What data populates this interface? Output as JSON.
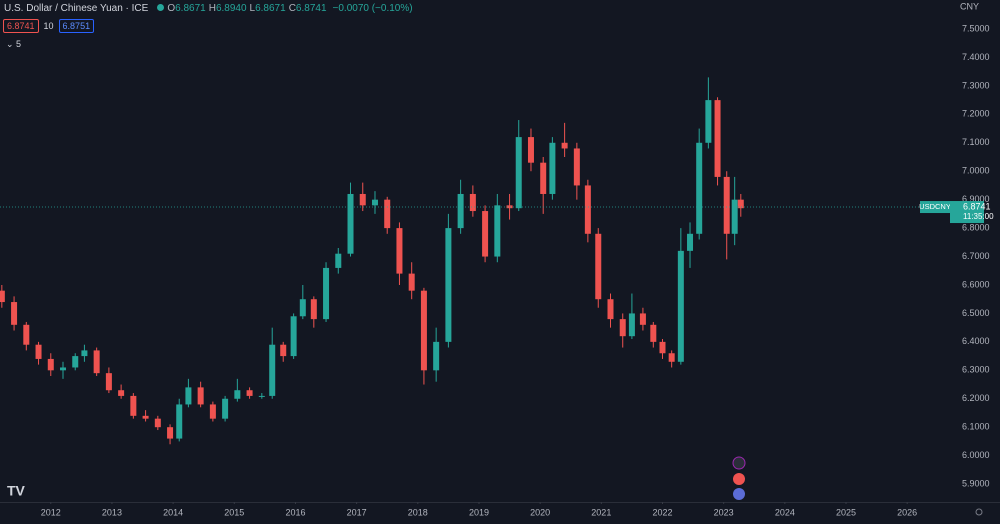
{
  "header": {
    "title": "U.S. Dollar / Chinese Yuan · ICE",
    "ohlc": [
      {
        "k": "O",
        "v": "6.8671"
      },
      {
        "k": "H",
        "v": "6.8940"
      },
      {
        "k": "L",
        "v": "6.8671"
      },
      {
        "k": "C",
        "v": "6.8741"
      }
    ],
    "change": "−0.0070 (−0.10%)",
    "sell": "6.8741",
    "spread": "10",
    "buy": "6.8751",
    "indicators": "5"
  },
  "chart_data": {
    "type": "candlestick",
    "x": [
      2011.2,
      2011.4,
      2011.6,
      2011.8,
      2012.0,
      2012.2,
      2012.4,
      2012.55,
      2012.75,
      2012.95,
      2013.15,
      2013.35,
      2013.55,
      2013.75,
      2013.95,
      2014.1,
      2014.25,
      2014.45,
      2014.65,
      2014.85,
      2015.05,
      2015.25,
      2015.45,
      2015.62,
      2015.8,
      2015.97,
      2016.12,
      2016.3,
      2016.5,
      2016.7,
      2016.9,
      2017.1,
      2017.3,
      2017.5,
      2017.7,
      2017.9,
      2018.1,
      2018.3,
      2018.5,
      2018.7,
      2018.9,
      2019.1,
      2019.3,
      2019.5,
      2019.65,
      2019.85,
      2020.05,
      2020.2,
      2020.4,
      2020.6,
      2020.78,
      2020.95,
      2021.15,
      2021.35,
      2021.5,
      2021.68,
      2021.85,
      2022.0,
      2022.15,
      2022.3,
      2022.45,
      2022.6,
      2022.75,
      2022.9,
      2023.05,
      2023.18,
      2023.28
    ],
    "open": [
      6.58,
      6.54,
      6.46,
      6.39,
      6.34,
      6.3,
      6.31,
      6.35,
      6.37,
      6.29,
      6.23,
      6.21,
      6.14,
      6.13,
      6.1,
      6.06,
      6.18,
      6.24,
      6.18,
      6.13,
      6.2,
      6.23,
      6.21,
      6.21,
      6.39,
      6.35,
      6.49,
      6.55,
      6.48,
      6.66,
      6.71,
      6.92,
      6.88,
      6.9,
      6.8,
      6.64,
      6.58,
      6.3,
      6.4,
      6.8,
      6.92,
      6.86,
      6.7,
      6.88,
      6.87,
      7.12,
      7.03,
      6.92,
      7.1,
      7.08,
      6.95,
      6.78,
      6.55,
      6.48,
      6.42,
      6.5,
      6.46,
      6.4,
      6.36,
      6.33,
      6.72,
      6.78,
      7.1,
      7.25,
      6.98,
      6.78,
      6.9
    ],
    "high": [
      6.6,
      6.56,
      6.47,
      6.4,
      6.36,
      6.33,
      6.36,
      6.39,
      6.38,
      6.31,
      6.25,
      6.22,
      6.16,
      6.14,
      6.11,
      6.2,
      6.27,
      6.26,
      6.19,
      6.21,
      6.27,
      6.24,
      6.22,
      6.45,
      6.4,
      6.5,
      6.6,
      6.56,
      6.68,
      6.73,
      6.96,
      6.96,
      6.93,
      6.91,
      6.82,
      6.68,
      6.59,
      6.45,
      6.85,
      6.97,
      6.95,
      6.88,
      6.92,
      6.92,
      7.18,
      7.15,
      7.05,
      7.12,
      7.17,
      7.1,
      6.97,
      6.8,
      6.57,
      6.5,
      6.57,
      6.52,
      6.47,
      6.41,
      6.37,
      6.8,
      6.82,
      7.15,
      7.33,
      7.26,
      7.0,
      6.98,
      6.92
    ],
    "low": [
      6.52,
      6.44,
      6.37,
      6.32,
      6.28,
      6.27,
      6.3,
      6.33,
      6.28,
      6.22,
      6.2,
      6.13,
      6.12,
      6.09,
      6.04,
      6.05,
      6.17,
      6.17,
      6.12,
      6.12,
      6.19,
      6.2,
      6.2,
      6.2,
      6.33,
      6.34,
      6.48,
      6.45,
      6.47,
      6.64,
      6.7,
      6.86,
      6.85,
      6.78,
      6.6,
      6.55,
      6.25,
      6.26,
      6.38,
      6.78,
      6.84,
      6.68,
      6.68,
      6.83,
      6.86,
      7.0,
      6.85,
      6.9,
      7.05,
      6.9,
      6.75,
      6.52,
      6.45,
      6.38,
      6.41,
      6.44,
      6.38,
      6.34,
      6.31,
      6.32,
      6.66,
      6.76,
      7.08,
      6.95,
      6.69,
      6.74,
      6.84
    ],
    "close": [
      6.54,
      6.46,
      6.39,
      6.34,
      6.3,
      6.31,
      6.35,
      6.37,
      6.29,
      6.23,
      6.21,
      6.14,
      6.13,
      6.1,
      6.06,
      6.18,
      6.24,
      6.18,
      6.13,
      6.2,
      6.23,
      6.21,
      6.21,
      6.39,
      6.35,
      6.49,
      6.55,
      6.48,
      6.66,
      6.71,
      6.92,
      6.88,
      6.9,
      6.8,
      6.64,
      6.58,
      6.3,
      6.4,
      6.8,
      6.92,
      6.86,
      6.7,
      6.88,
      6.87,
      7.12,
      7.03,
      6.92,
      7.1,
      7.08,
      6.95,
      6.78,
      6.55,
      6.48,
      6.42,
      6.5,
      6.46,
      6.4,
      6.36,
      6.33,
      6.72,
      6.78,
      7.1,
      7.25,
      6.98,
      6.78,
      6.9,
      6.87
    ],
    "up_color": "#26a69a",
    "down_color": "#ef5350",
    "xlim": [
      2011.17,
      2026.7
    ],
    "xticks": [
      2012,
      2013,
      2014,
      2015,
      2016,
      2017,
      2018,
      2019,
      2020,
      2021,
      2022,
      2023,
      2024,
      2025,
      2026
    ],
    "ylim": [
      5.837,
      7.602
    ],
    "yticks": [
      {
        "value": 5.9,
        "label": "5.9000"
      },
      {
        "value": 6.0,
        "label": "6.0000"
      },
      {
        "value": 6.1,
        "label": "6.1000"
      },
      {
        "value": 6.2,
        "label": "6.2000"
      },
      {
        "value": 6.3,
        "label": "6.3000"
      },
      {
        "value": 6.4,
        "label": "6.4000"
      },
      {
        "value": 6.5,
        "label": "6.5000"
      },
      {
        "value": 6.6,
        "label": "6.6000"
      },
      {
        "value": 6.7,
        "label": "6.7000"
      },
      {
        "value": 6.8,
        "label": "6.8000"
      },
      {
        "value": 6.9,
        "label": "6.9000"
      },
      {
        "value": 7.0,
        "label": "7.0000"
      },
      {
        "value": 7.1,
        "label": "7.1000"
      },
      {
        "value": 7.2,
        "label": "7.2000"
      },
      {
        "value": 7.3,
        "label": "7.3000"
      },
      {
        "value": 7.4,
        "label": "7.4000"
      },
      {
        "value": 7.5,
        "label": "7.5000"
      }
    ],
    "y_axis_label": "CNY",
    "symbol": "USDCNY",
    "last_price": 6.8741,
    "last_time": "11:35:00",
    "grid": false
  }
}
